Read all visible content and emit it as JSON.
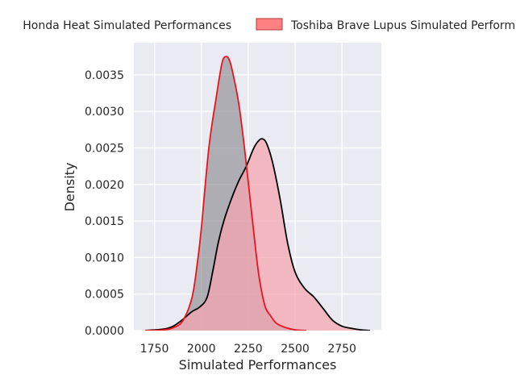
{
  "chart_data": {
    "type": "area",
    "xlabel": "Simulated Performances",
    "ylabel": "Density",
    "xlim": [
      1640,
      2960
    ],
    "ylim": [
      0,
      0.00394
    ],
    "x_ticks": [
      1750,
      2000,
      2250,
      2500,
      2750
    ],
    "y_ticks": [
      0.0,
      0.0005,
      0.001,
      0.0015,
      0.002,
      0.0025,
      0.003,
      0.0035
    ],
    "x_tick_labels": [
      "1750",
      "2000",
      "2250",
      "2500",
      "2750"
    ],
    "y_tick_labels": [
      "0.0000",
      "0.0005",
      "0.0010",
      "0.0015",
      "0.0020",
      "0.0025",
      "0.0030",
      "0.0035"
    ],
    "grid": true,
    "legend_position": "top (outside plot, clipped at left and right)",
    "series": [
      {
        "name": "Honda Heat Simulated Performances",
        "fill_color": "#7a7a80",
        "line_color": "#e8141f",
        "x": [
          1700,
          1800,
          1850,
          1900,
          1950,
          1980,
          2000,
          2040,
          2080,
          2110,
          2130,
          2150,
          2170,
          2200,
          2230,
          2260,
          2290,
          2310,
          2340,
          2370,
          2400,
          2450,
          2500,
          2560
        ],
        "y": [
          0,
          1e-05,
          4e-05,
          0.00013,
          0.00045,
          0.00095,
          0.0014,
          0.0025,
          0.0032,
          0.00366,
          0.00375,
          0.0037,
          0.0035,
          0.0031,
          0.0025,
          0.0018,
          0.0011,
          0.0007,
          0.00033,
          0.0002,
          0.0001,
          4e-05,
          1e-05,
          0
        ]
      },
      {
        "name": "Toshiba Brave Lupus Simulated Performances",
        "fill_color": "#f4a6b0",
        "line_color": "#000000",
        "x": [
          1700,
          1800,
          1850,
          1900,
          1950,
          1990,
          2030,
          2060,
          2090,
          2120,
          2160,
          2200,
          2240,
          2280,
          2310,
          2330,
          2350,
          2380,
          2420,
          2460,
          2500,
          2550,
          2600,
          2650,
          2700,
          2750,
          2800,
          2850,
          2900
        ],
        "y": [
          0,
          2e-05,
          6e-05,
          0.00015,
          0.00026,
          0.00032,
          0.00045,
          0.0008,
          0.0012,
          0.0015,
          0.0018,
          0.00205,
          0.00225,
          0.0025,
          0.00261,
          0.00262,
          0.00255,
          0.0023,
          0.0018,
          0.0012,
          0.0008,
          0.00058,
          0.00046,
          0.0003,
          0.00014,
          6e-05,
          3e-05,
          1e-05,
          0
        ]
      }
    ]
  },
  "legend": {
    "item_1": "Honda Heat Simulated Performances",
    "item_2": "Toshiba Brave Lupus Simulated Performances"
  },
  "colors": {
    "plot_background": "#eaeaf2",
    "grid": "#ffffff",
    "text": "#262626"
  }
}
